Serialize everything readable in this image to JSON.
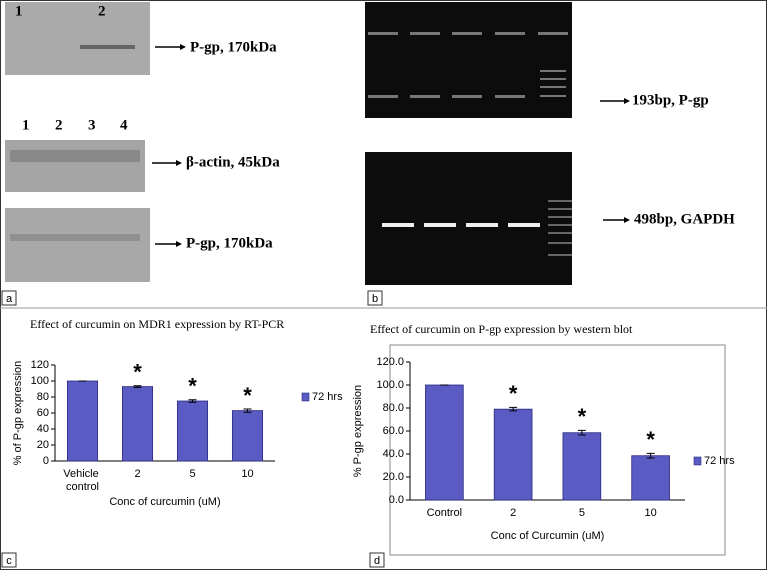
{
  "panel_a": {
    "label": "a",
    "blot1_lanes": [
      "1",
      "2"
    ],
    "blot1_marker": "P-gp, 170kDa",
    "blot2_lanes": [
      "1",
      "2",
      "3",
      "4"
    ],
    "blot2_marker": "β-actin, 45kDa",
    "blot3_marker": "P-gp, 170kDa"
  },
  "panel_b": {
    "label": "b",
    "gel1_marker": "193bp, P-gp",
    "gel2_marker": "498bp, GAPDH"
  },
  "chart_data": [
    {
      "type": "bar",
      "panel": "c",
      "title": "Effect of curcumin on MDR1 expression by RT-PCR",
      "x_label": "Conc of curcumin (uM)",
      "y_label": "% of P-gp expression",
      "categories": [
        "Vehicle control",
        "2",
        "5",
        "10"
      ],
      "series": [
        {
          "name": "72 hrs",
          "color": "#5b5bc4",
          "values": [
            100,
            93,
            75,
            63
          ],
          "errors": [
            0,
            1,
            1.5,
            2
          ]
        }
      ],
      "significance": [
        null,
        "*",
        "*",
        "*"
      ],
      "ylim": [
        0,
        120
      ],
      "yticks": [
        0,
        20,
        40,
        60,
        80,
        100,
        120
      ]
    },
    {
      "type": "bar",
      "panel": "d",
      "title": "Effect of curcumin on P-gp expression by western blot",
      "x_label": "Conc of Curcumin (uM)",
      "y_label": "% P-gp expression",
      "categories": [
        "Control",
        "2",
        "5",
        "10"
      ],
      "series": [
        {
          "name": "72 hrs",
          "color": "#5b5bc4",
          "values": [
            100,
            79,
            58.5,
            38.5
          ],
          "errors": [
            0,
            1.5,
            2,
            2
          ]
        }
      ],
      "significance": [
        null,
        "*",
        "*",
        "*"
      ],
      "ylim": [
        0,
        120
      ],
      "yticks": [
        {
          "value": 0,
          "label": "0.0"
        },
        {
          "value": 20,
          "label": "20.0"
        },
        {
          "value": 40,
          "label": "40.0"
        },
        {
          "value": 60,
          "label": "60.0"
        },
        {
          "value": 80,
          "label": "80.0"
        },
        {
          "value": 100,
          "label": "100.0"
        },
        {
          "value": 120,
          "label": "120.0"
        }
      ]
    }
  ]
}
